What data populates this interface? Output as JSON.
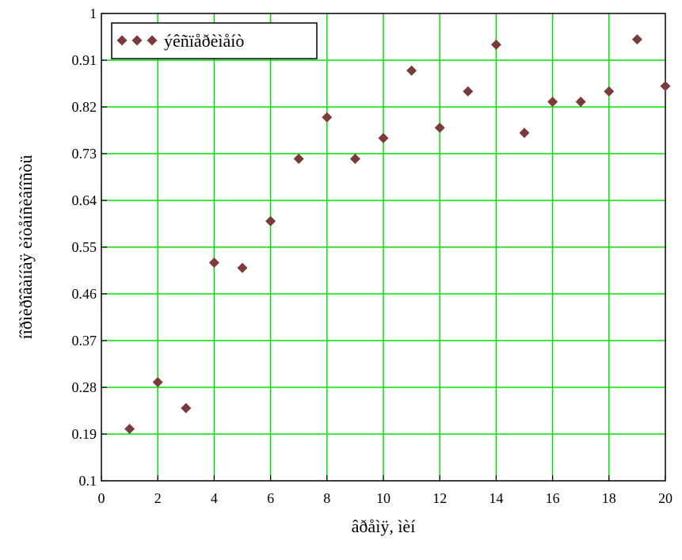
{
  "chart_data": {
    "type": "scatter",
    "xlabel": "âðåìÿ, ìèí",
    "ylabel": "íîðìèðîâàííàÿ èíòåíñèâíîñòü",
    "xlim": [
      0,
      20
    ],
    "ylim": [
      0.1,
      1
    ],
    "x_ticks": [
      "0",
      "2",
      "4",
      "6",
      "8",
      "10",
      "12",
      "14",
      "16",
      "18",
      "20"
    ],
    "y_ticks": [
      "0.1",
      "0.19",
      "0.28",
      "0.37",
      "0.46",
      "0.55",
      "0.64",
      "0.73",
      "0.82",
      "0.91",
      "1"
    ],
    "grid": true,
    "grid_color": "#00e000",
    "legend_position": "top-left",
    "series": [
      {
        "name": "ýêñïåðèìåíò",
        "color": "#7b3b3b",
        "marker": "diamond",
        "x": [
          1,
          2,
          3,
          4,
          5,
          6,
          7,
          8,
          9,
          10,
          11,
          12,
          13,
          14,
          15,
          16,
          17,
          18,
          19,
          20
        ],
        "y": [
          0.2,
          0.29,
          0.24,
          0.52,
          0.51,
          0.6,
          0.72,
          0.8,
          0.72,
          0.76,
          0.89,
          0.78,
          0.85,
          0.94,
          0.77,
          0.83,
          0.83,
          0.85,
          0.95,
          0.86
        ]
      }
    ]
  }
}
